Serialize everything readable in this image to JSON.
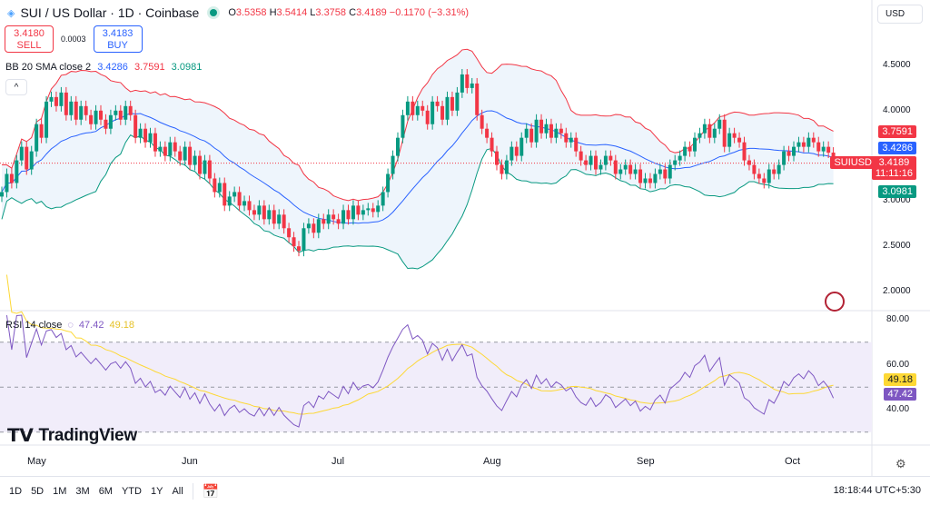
{
  "header": {
    "symbol_icon": "sui-drop-icon",
    "title": "SUI / US Dollar · 1D · Coinbase",
    "status": "market-open",
    "open_label": "O",
    "open": "3.5358",
    "high_label": "H",
    "high": "3.5414",
    "low_label": "L",
    "low": "3.3758",
    "close_label": "C",
    "close": "3.4189",
    "change": "−0.1170 (−3.31%)"
  },
  "trade": {
    "sell_price": "3.4180",
    "sell_label": "SELL",
    "spread": "0.0003",
    "buy_price": "3.4183",
    "buy_label": "BUY"
  },
  "currency": "USD",
  "bb": {
    "label": "BB 20 SMA close 2",
    "basis": "3.4286",
    "upper": "3.7591",
    "lower": "3.0981"
  },
  "rsi": {
    "label": "RSI 14 close",
    "value": "47.42",
    "ma": "49.18"
  },
  "price_axis": [
    "4.5000",
    "4.0000",
    "3.0000",
    "2.5000",
    "2.0000"
  ],
  "price_labels": {
    "upper": "3.7591",
    "basis": "3.4286",
    "symbol": "SUIUSD",
    "last": "3.4189",
    "countdown": "11:11:16",
    "lower": "3.0981"
  },
  "rsi_axis": [
    "80.00",
    "60.00",
    "40.00"
  ],
  "rsi_labels": {
    "ma": "49.18",
    "rsi": "47.42"
  },
  "time_axis": [
    "May",
    "Jun",
    "Jul",
    "Aug",
    "Sep",
    "Oct"
  ],
  "brand": "TradingView",
  "ranges": [
    "1D",
    "5D",
    "1M",
    "3M",
    "6M",
    "YTD",
    "1Y",
    "All"
  ],
  "clock": "18:18:44 UTC+5:30",
  "colors": {
    "up": "#089981",
    "down": "#f23645",
    "basis": "#2962ff",
    "upper": "#f23645",
    "lower": "#089981",
    "rsi": "#7e57c2",
    "rsi_ma": "#fdd835",
    "band_fill": "#eaf3fb",
    "rsi_fill": "#f1edfa"
  },
  "chart_data": {
    "type": "candlestick",
    "start_date": "2024-04-24",
    "interval": "1D",
    "ylim": [
      1.8,
      4.7
    ],
    "rsi_ylim": [
      25,
      85
    ],
    "rsi_levels": [
      70,
      50,
      30
    ],
    "indicators": [
      "Bollinger Bands 20 SMA 2",
      "RSI 14 with MA"
    ],
    "close": [
      3.1,
      3.3,
      3.2,
      3.45,
      3.6,
      3.35,
      3.55,
      3.85,
      3.7,
      4.1,
      4.15,
      4.05,
      4.2,
      3.95,
      4.1,
      3.9,
      4.05,
      3.95,
      3.85,
      4.0,
      3.9,
      3.8,
      3.95,
      4.0,
      3.9,
      4.05,
      3.95,
      3.7,
      3.8,
      3.65,
      3.75,
      3.55,
      3.6,
      3.5,
      3.65,
      3.55,
      3.45,
      3.6,
      3.4,
      3.5,
      3.3,
      3.45,
      3.25,
      3.1,
      3.2,
      2.95,
      3.05,
      3.1,
      2.95,
      3.0,
      2.9,
      2.85,
      2.95,
      2.8,
      2.9,
      2.75,
      2.85,
      2.7,
      2.6,
      2.5,
      2.45,
      2.7,
      2.75,
      2.65,
      2.8,
      2.75,
      2.85,
      2.8,
      2.75,
      2.9,
      2.8,
      2.95,
      2.85,
      2.9,
      2.92,
      2.88,
      2.95,
      3.1,
      3.3,
      3.5,
      3.7,
      3.95,
      4.1,
      3.95,
      4.05,
      4.0,
      3.85,
      4.1,
      4.05,
      3.9,
      4.15,
      4.0,
      4.2,
      4.4,
      4.25,
      4.3,
      3.95,
      3.8,
      3.7,
      3.55,
      3.4,
      3.3,
      3.45,
      3.6,
      3.5,
      3.7,
      3.8,
      3.65,
      3.9,
      3.75,
      3.85,
      3.7,
      3.8,
      3.75,
      3.65,
      3.7,
      3.55,
      3.45,
      3.4,
      3.5,
      3.35,
      3.4,
      3.5,
      3.45,
      3.3,
      3.35,
      3.4,
      3.3,
      3.35,
      3.2,
      3.25,
      3.2,
      3.3,
      3.35,
      3.25,
      3.4,
      3.45,
      3.5,
      3.6,
      3.55,
      3.7,
      3.75,
      3.85,
      3.7,
      3.8,
      3.9,
      3.6,
      3.75,
      3.7,
      3.65,
      3.45,
      3.4,
      3.3,
      3.25,
      3.2,
      3.35,
      3.3,
      3.4,
      3.55,
      3.5,
      3.6,
      3.65,
      3.6,
      3.7,
      3.65,
      3.55,
      3.6,
      3.5358,
      3.4189
    ]
  }
}
